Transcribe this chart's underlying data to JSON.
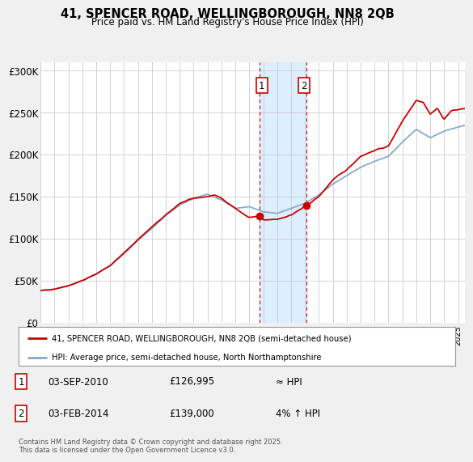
{
  "title": "41, SPENCER ROAD, WELLINGBOROUGH, NN8 2QB",
  "subtitle": "Price paid vs. HM Land Registry's House Price Index (HPI)",
  "bg_color": "#f0f0f0",
  "plot_bg_color": "#ffffff",
  "grid_color": "#cccccc",
  "red_line_color": "#cc0000",
  "blue_line_color": "#88aacc",
  "highlight_color": "#ddeeff",
  "dashed_color": "#cc0000",
  "ylim": [
    0,
    310000
  ],
  "yticks": [
    0,
    50000,
    100000,
    150000,
    200000,
    250000,
    300000
  ],
  "ytick_labels": [
    "£0",
    "£50K",
    "£100K",
    "£150K",
    "£200K",
    "£250K",
    "£300K"
  ],
  "legend_line1": "41, SPENCER ROAD, WELLINGBOROUGH, NN8 2QB (semi-detached house)",
  "legend_line2": "HPI: Average price, semi-detached house, North Northamptonshire",
  "transaction1_label": "1",
  "transaction1_date": "03-SEP-2010",
  "transaction1_price": "£126,995",
  "transaction1_hpi": "≈ HPI",
  "transaction2_label": "2",
  "transaction2_date": "03-FEB-2014",
  "transaction2_price": "£139,000",
  "transaction2_hpi": "4% ↑ HPI",
  "footnote": "Contains HM Land Registry data © Crown copyright and database right 2025.\nThis data is licensed under the Open Government Licence v3.0.",
  "highlight_x_start": 2010.75,
  "highlight_x_end": 2014.08,
  "marker1_x": 2010.75,
  "marker1_y": 126995,
  "marker2_x": 2014.08,
  "marker2_y": 139000,
  "xmin": 1995,
  "xmax": 2025.5
}
